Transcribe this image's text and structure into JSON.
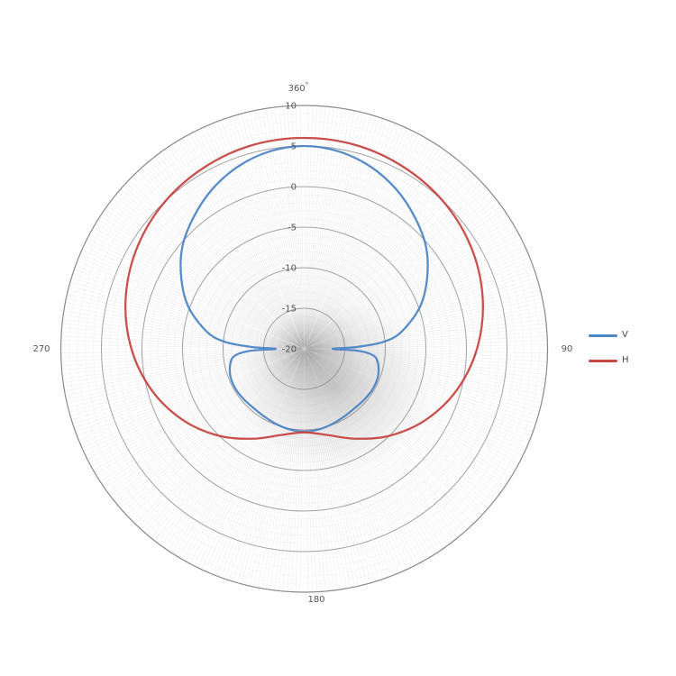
{
  "figure": {
    "background": "#ffffff",
    "text_color": "#555555",
    "grid_color": "#999999"
  },
  "chart_data": {
    "type": "line",
    "projection": "polar",
    "title": "",
    "units": "dB",
    "theta_zero": "top",
    "theta_direction": "clockwise",
    "rlim": [
      -20,
      10
    ],
    "grid": {
      "on": true,
      "major_ring_step": 5,
      "minor_ring_step": 1,
      "theta_line_step_deg": 1
    },
    "radial_ticks": [
      {
        "value": 10,
        "label": "10"
      },
      {
        "value": 5,
        "label": "5"
      },
      {
        "value": 0,
        "label": "0"
      },
      {
        "value": -5,
        "label": "-5"
      },
      {
        "value": -10,
        "label": "-10"
      },
      {
        "value": -15,
        "label": "-15"
      },
      {
        "value": -20,
        "label": "-20"
      }
    ],
    "angular_ticks": [
      {
        "angle": 360,
        "label": "360°"
      },
      {
        "angle": 90,
        "label": "90"
      },
      {
        "angle": 180,
        "label": "180"
      },
      {
        "angle": 270,
        "label": "270"
      }
    ],
    "legend_position": "right",
    "series": [
      {
        "name": "V",
        "color": "#4f86c6",
        "points": [
          [
            0,
            5.0
          ],
          [
            10,
            4.7
          ],
          [
            20,
            3.9
          ],
          [
            30,
            2.7
          ],
          [
            40,
            1.2
          ],
          [
            50,
            -0.4
          ],
          [
            60,
            -2.5
          ],
          [
            70,
            -4.8
          ],
          [
            80,
            -7.8
          ],
          [
            85,
            -10.2
          ],
          [
            88,
            -13.5
          ],
          [
            90,
            -16.5
          ],
          [
            92,
            -13.5
          ],
          [
            95,
            -11.6
          ],
          [
            100,
            -10.8
          ],
          [
            110,
            -10.3
          ],
          [
            120,
            -10.2
          ],
          [
            130,
            -10.3
          ],
          [
            140,
            -10.4
          ],
          [
            150,
            -10.3
          ],
          [
            160,
            -10.1
          ],
          [
            170,
            -9.9
          ],
          [
            180,
            -9.8
          ],
          [
            190,
            -9.9
          ],
          [
            200,
            -10.1
          ],
          [
            210,
            -10.3
          ],
          [
            220,
            -10.4
          ],
          [
            230,
            -10.3
          ],
          [
            240,
            -10.2
          ],
          [
            250,
            -10.3
          ],
          [
            260,
            -10.8
          ],
          [
            265,
            -11.6
          ],
          [
            268,
            -13.5
          ],
          [
            270,
            -16.5
          ],
          [
            272,
            -13.5
          ],
          [
            275,
            -10.2
          ],
          [
            280,
            -7.8
          ],
          [
            290,
            -4.8
          ],
          [
            300,
            -2.5
          ],
          [
            310,
            -0.4
          ],
          [
            320,
            1.2
          ],
          [
            330,
            2.7
          ],
          [
            340,
            3.9
          ],
          [
            350,
            4.7
          ]
        ]
      },
      {
        "name": "H",
        "color": "#c64743",
        "points": [
          [
            0,
            6.0
          ],
          [
            15,
            5.9
          ],
          [
            30,
            5.5
          ],
          [
            45,
            4.9
          ],
          [
            60,
            4.0
          ],
          [
            75,
            2.8
          ],
          [
            90,
            1.3
          ],
          [
            105,
            -0.5
          ],
          [
            120,
            -2.6
          ],
          [
            135,
            -4.9
          ],
          [
            150,
            -7.2
          ],
          [
            165,
            -9.0
          ],
          [
            180,
            -9.7
          ],
          [
            195,
            -9.0
          ],
          [
            210,
            -7.2
          ],
          [
            225,
            -4.9
          ],
          [
            240,
            -2.6
          ],
          [
            255,
            -0.5
          ],
          [
            270,
            1.3
          ],
          [
            285,
            2.8
          ],
          [
            300,
            4.0
          ],
          [
            315,
            4.9
          ],
          [
            330,
            5.5
          ],
          [
            345,
            5.9
          ]
        ]
      }
    ]
  }
}
